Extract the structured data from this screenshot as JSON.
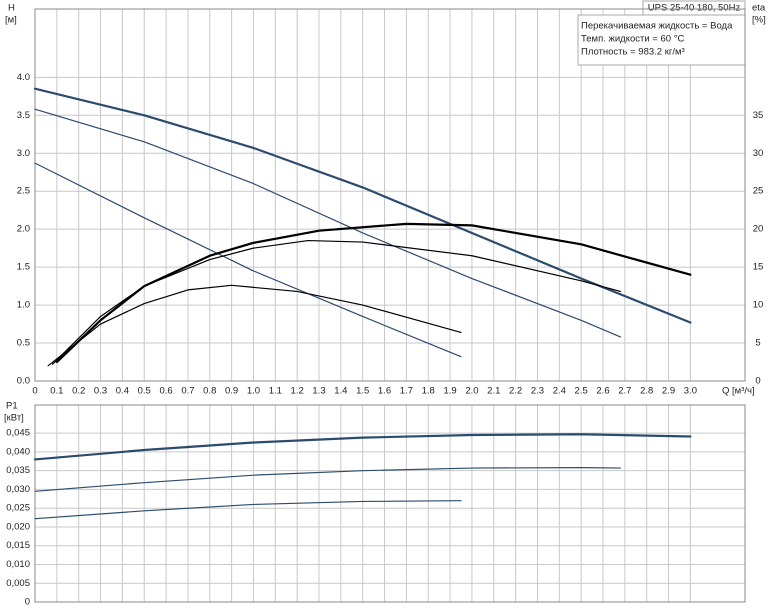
{
  "chart_data": [
    {
      "type": "line",
      "title": "UPS 25-40 180, 50Hz",
      "notes": [
        "Перекачиваемая жидкость = Вода",
        "Темп. жидкости = 60 °C",
        "Плотность = 983.2 кг/м³"
      ],
      "y_label": "H",
      "y_unit": "[м]",
      "y2_label": "eta",
      "y2_unit": "[%]",
      "x_label": "Q [м³/ч]",
      "xlim": [
        0,
        3.25
      ],
      "ylim": [
        0,
        4.9
      ],
      "y2lim": [
        0,
        49
      ],
      "grid": true,
      "xticks": [
        0,
        0.1,
        0.2,
        0.3,
        0.4,
        0.5,
        0.6,
        0.7,
        0.8,
        0.9,
        {
          "value": 1,
          "label": "1.0"
        },
        1.1,
        1.2,
        1.3,
        1.4,
        1.5,
        1.6,
        1.7,
        1.8,
        1.9,
        {
          "value": 2,
          "label": "2.0"
        },
        2.1,
        2.2,
        2.3,
        2.4,
        2.5,
        2.6,
        2.7,
        2.8,
        2.9,
        {
          "value": 3,
          "label": "3.0"
        }
      ],
      "yticks": [
        {
          "value": 0,
          "label": "0.0"
        },
        0.5,
        {
          "value": 1,
          "label": "1.0"
        },
        1.5,
        {
          "value": 2,
          "label": "2.0"
        },
        2.5,
        {
          "value": 3,
          "label": "3.0"
        },
        3.5,
        {
          "value": 4,
          "label": "4.0"
        }
      ],
      "y2ticks": [
        0,
        5,
        10,
        15,
        20,
        25,
        30,
        35
      ],
      "series": [
        {
          "color": "#2b4b6f",
          "width": 2.2,
          "x": [
            0,
            0.5,
            1.0,
            1.5,
            2.0,
            2.5,
            3.0
          ],
          "values": [
            3.85,
            3.5,
            3.07,
            2.55,
            1.95,
            1.35,
            0.77
          ]
        },
        {
          "color": "#2b4b6f",
          "width": 1.2,
          "x": [
            0,
            0.5,
            1.0,
            1.5,
            2.0,
            2.5,
            2.68
          ],
          "values": [
            3.58,
            3.15,
            2.6,
            1.95,
            1.35,
            0.8,
            0.58
          ]
        },
        {
          "color": "#2b4b6f",
          "width": 1.2,
          "x": [
            0,
            0.5,
            1.0,
            1.5,
            1.95
          ],
          "values": [
            2.87,
            2.15,
            1.45,
            0.85,
            0.32
          ]
        },
        {
          "color": "#000000",
          "width": 2.2,
          "axis": "y2",
          "x": [
            0.1,
            0.3,
            0.5,
            0.8,
            1.0,
            1.3,
            1.7,
            2.0,
            2.5,
            3.0
          ],
          "values": [
            2.5,
            8,
            12.5,
            16.5,
            18.2,
            19.8,
            20.7,
            20.5,
            18,
            14
          ]
        },
        {
          "color": "#000000",
          "width": 1.2,
          "axis": "y2",
          "x": [
            0.08,
            0.3,
            0.5,
            0.8,
            1.0,
            1.25,
            1.5,
            2.0,
            2.5,
            2.68
          ],
          "values": [
            2.2,
            8.5,
            12.5,
            16,
            17.5,
            18.5,
            18.3,
            16.5,
            13.2,
            11.8
          ]
        },
        {
          "color": "#000000",
          "width": 1.2,
          "axis": "y2",
          "x": [
            0.06,
            0.3,
            0.5,
            0.7,
            0.9,
            1.2,
            1.5,
            1.95
          ],
          "values": [
            2,
            7.5,
            10.2,
            12,
            12.6,
            11.8,
            10,
            6.4
          ]
        }
      ]
    },
    {
      "type": "line",
      "y_label": "P1",
      "y_unit": "[кВт]",
      "xlim": [
        0,
        3.25
      ],
      "ylim": [
        0,
        0.0525
      ],
      "grid": true,
      "yticks": [
        0,
        {
          "value": 0.005,
          "label": "0,005"
        },
        {
          "value": 0.01,
          "label": "0,010"
        },
        {
          "value": 0.015,
          "label": "0,015"
        },
        {
          "value": 0.02,
          "label": "0,020"
        },
        {
          "value": 0.025,
          "label": "0,025"
        },
        {
          "value": 0.03,
          "label": "0,030"
        },
        {
          "value": 0.035,
          "label": "0,035"
        },
        {
          "value": 0.04,
          "label": "0,040"
        },
        {
          "value": 0.045,
          "label": "0,045"
        }
      ],
      "series": [
        {
          "color": "#2b4b6f",
          "width": 2.2,
          "x": [
            0,
            0.5,
            1.0,
            1.5,
            2.0,
            2.5,
            3.0
          ],
          "values": [
            0.038,
            0.0405,
            0.0425,
            0.0438,
            0.0445,
            0.0447,
            0.0441
          ]
        },
        {
          "color": "#2b4b6f",
          "width": 1.2,
          "x": [
            0,
            0.5,
            1.0,
            1.5,
            2.0,
            2.5,
            2.68
          ],
          "values": [
            0.0295,
            0.0318,
            0.0338,
            0.035,
            0.0357,
            0.0358,
            0.0357
          ]
        },
        {
          "color": "#2b4b6f",
          "width": 1.2,
          "x": [
            0,
            0.5,
            1.0,
            1.5,
            1.95
          ],
          "values": [
            0.0222,
            0.0243,
            0.026,
            0.0268,
            0.027
          ]
        }
      ]
    }
  ]
}
